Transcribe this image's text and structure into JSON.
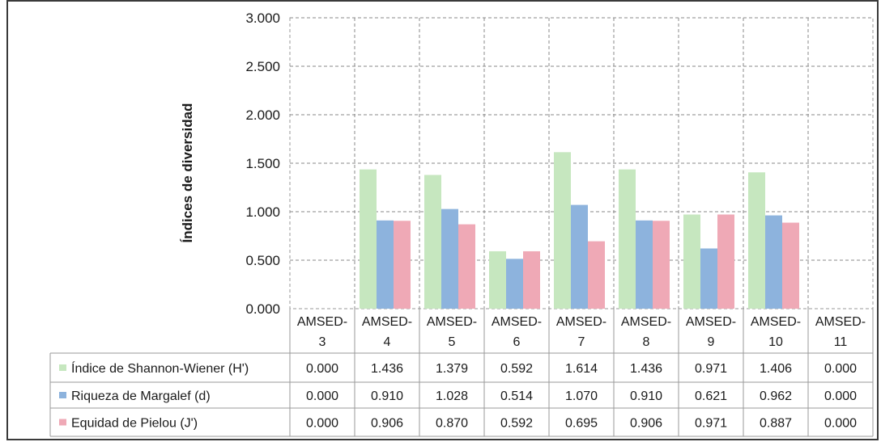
{
  "chart_data": {
    "type": "bar",
    "ylabel": "Índices de diversidad",
    "ylim": [
      0,
      3
    ],
    "y_ticks": [
      0,
      0.5,
      1.0,
      1.5,
      2.0,
      2.5,
      3.0
    ],
    "y_tick_labels": [
      "0.000",
      "0.500",
      "1.000",
      "1.500",
      "2.000",
      "2.500",
      "3.000"
    ],
    "categories": [
      [
        "AMSED-",
        "3"
      ],
      [
        "AMSED-",
        "4"
      ],
      [
        "AMSED-",
        "5"
      ],
      [
        "AMSED-",
        "6"
      ],
      [
        "AMSED-",
        "7"
      ],
      [
        "AMSED-",
        "8"
      ],
      [
        "AMSED-",
        "9"
      ],
      [
        "AMSED-",
        "10"
      ],
      [
        "AMSED-",
        "11"
      ]
    ],
    "grid": true,
    "legend": "data-table",
    "series": [
      {
        "name": "Índice de Shannon-Wiener (H')",
        "color": "#c6e7bf",
        "values": [
          0.0,
          1.436,
          1.379,
          0.592,
          1.614,
          1.436,
          0.971,
          1.406,
          0.0
        ],
        "labels": [
          "0.000",
          "1.436",
          "1.379",
          "0.592",
          "1.614",
          "1.436",
          "0.971",
          "1.406",
          "0.000"
        ]
      },
      {
        "name": "Riqueza de Margalef (d)",
        "color": "#8db3dd",
        "values": [
          0.0,
          0.91,
          1.028,
          0.514,
          1.07,
          0.91,
          0.621,
          0.962,
          0.0
        ],
        "labels": [
          "0.000",
          "0.910",
          "1.028",
          "0.514",
          "1.070",
          "0.910",
          "0.621",
          "0.962",
          "0.000"
        ]
      },
      {
        "name": "Equidad de Pielou (J')",
        "color": "#efa9b6",
        "values": [
          0.0,
          0.906,
          0.87,
          0.592,
          0.695,
          0.906,
          0.971,
          0.887,
          0.0
        ],
        "labels": [
          "0.000",
          "0.906",
          "0.870",
          "0.592",
          "0.695",
          "0.906",
          "0.971",
          "0.887",
          "0.000"
        ]
      }
    ]
  }
}
